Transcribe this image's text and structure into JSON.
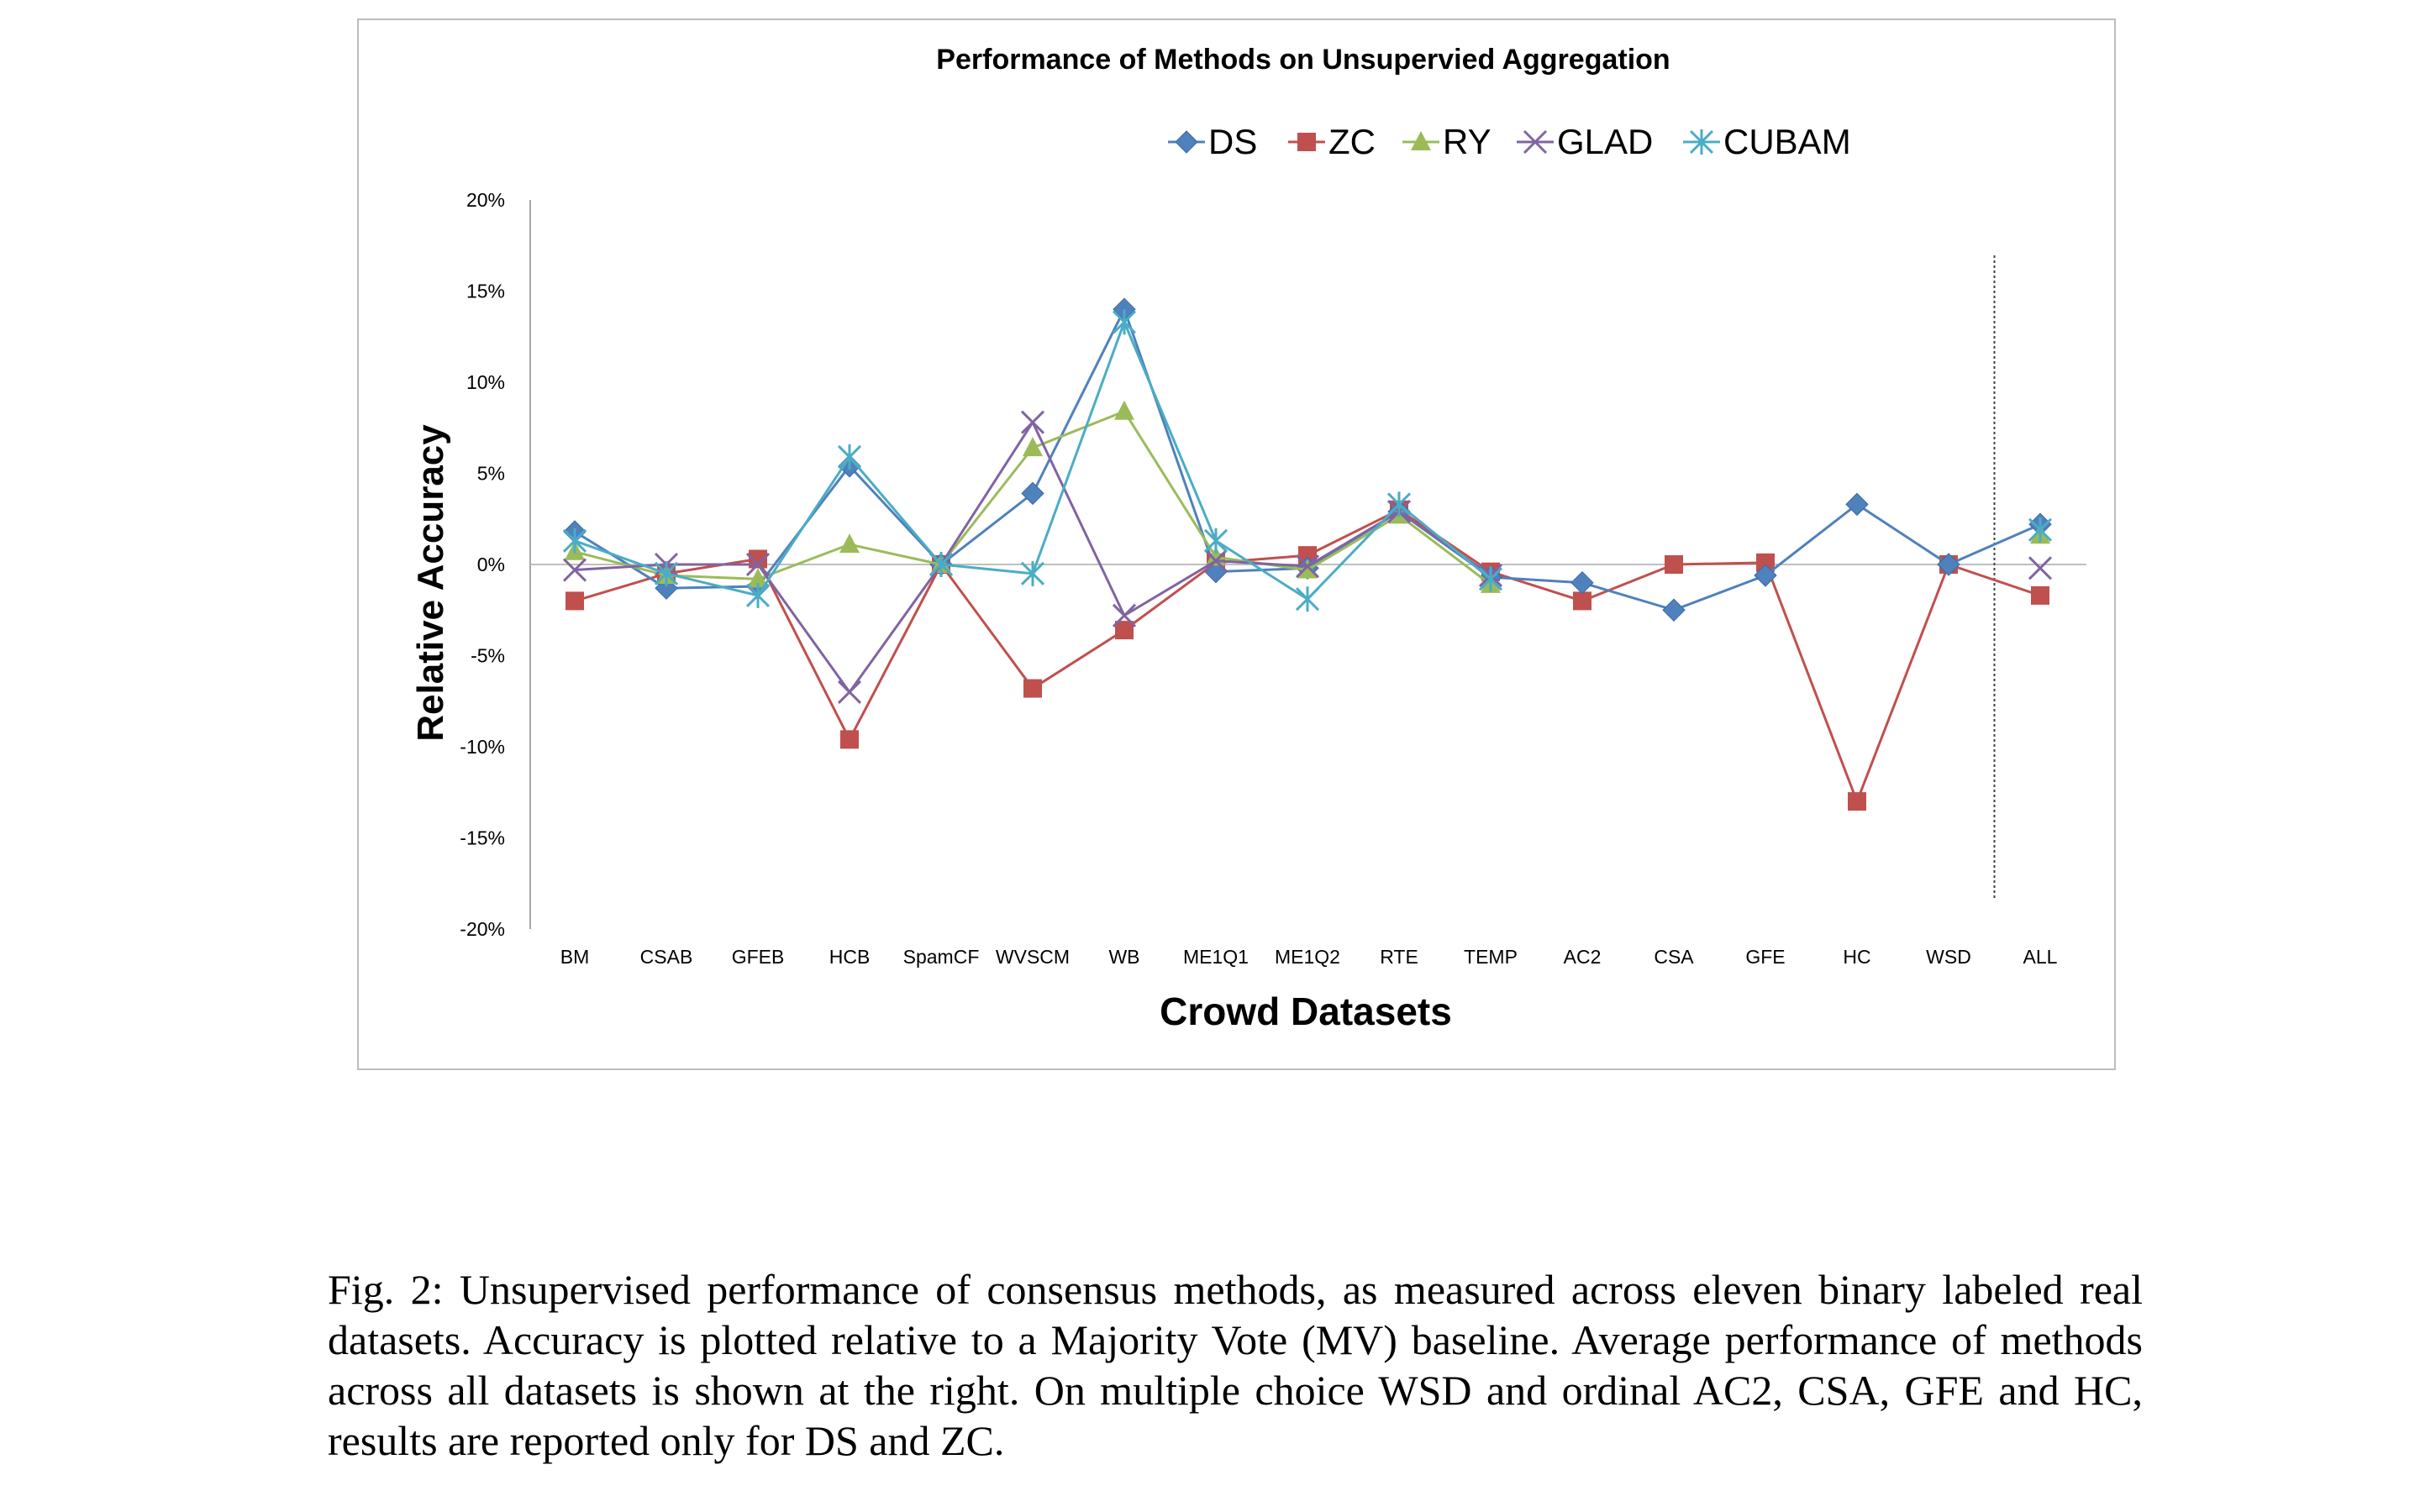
{
  "chart_data": {
    "type": "line",
    "title": "Performance of Methods on Unsupervied Aggregation",
    "xlabel": "Crowd Datasets",
    "ylabel": "Relative Accuracy",
    "ylim": [
      -20,
      20
    ],
    "y_ticks": [
      "20%",
      "15%",
      "10%",
      "5%",
      "0%",
      "-5%",
      "-10%",
      "-15%",
      "-20%"
    ],
    "y_tick_values": [
      20,
      15,
      10,
      5,
      0,
      -5,
      -10,
      -15,
      -20
    ],
    "categories": [
      "BM",
      "CSAB",
      "GFEB",
      "HCB",
      "SpamCF",
      "WVSCM",
      "WB",
      "ME1Q1",
      "ME1Q2",
      "RTE",
      "TEMP",
      "AC2",
      "CSA",
      "GFE",
      "HC",
      "WSD",
      "ALL"
    ],
    "grid": false,
    "legend_position": "top",
    "separator_before": "ALL",
    "series": [
      {
        "name": "DS",
        "color": "#4f81bd",
        "marker": "diamond",
        "values": [
          1.8,
          -1.3,
          -1.2,
          5.4,
          0,
          3.9,
          14.0,
          -0.4,
          -0.2,
          2.9,
          -0.7,
          -1.0,
          -2.5,
          -0.6,
          3.3,
          0,
          2.2
        ]
      },
      {
        "name": "ZC",
        "color": "#c0504d",
        "marker": "square",
        "values": [
          -2.0,
          -0.5,
          0.3,
          -9.6,
          0,
          -6.8,
          -3.6,
          0.1,
          0.5,
          3.0,
          -0.4,
          -2.0,
          0,
          0.1,
          -13.0,
          0,
          -1.7
        ]
      },
      {
        "name": "RY",
        "color": "#9bbb59",
        "marker": "triangle",
        "values": [
          0.7,
          -0.6,
          -0.8,
          1.1,
          0,
          6.4,
          8.4,
          0.4,
          -0.3,
          2.7,
          -1.1,
          null,
          null,
          null,
          null,
          null,
          1.6
        ]
      },
      {
        "name": "GLAD",
        "color": "#8064a2",
        "marker": "x",
        "values": [
          -0.3,
          0,
          0,
          -7.0,
          0,
          7.8,
          -2.8,
          0.2,
          -0.1,
          2.9,
          -0.6,
          null,
          null,
          null,
          null,
          null,
          -0.2
        ]
      },
      {
        "name": "CUBAM",
        "color": "#4bacc6",
        "marker": "star",
        "values": [
          1.3,
          -0.5,
          -1.7,
          5.9,
          0,
          -0.5,
          13.3,
          1.3,
          -1.9,
          3.3,
          -0.8,
          null,
          null,
          null,
          null,
          null,
          1.9
        ]
      }
    ]
  },
  "caption": "Fig. 2: Unsupervised performance of consensus methods, as measured across eleven binary labeled real datasets. Accuracy is plotted relative to a Majority Vote (MV) baseline. Average performance of methods across all datasets is shown at the right. On multiple choice WSD and ordinal AC2, CSA, GFE and HC, results are reported only for DS and ZC."
}
